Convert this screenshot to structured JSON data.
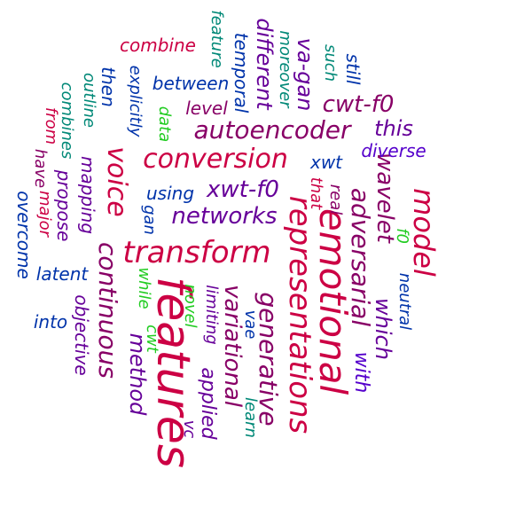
{
  "words": [
    {
      "text": "features",
      "color": "#cc0044"
    },
    {
      "text": "emotional",
      "color": "#cc0044"
    },
    {
      "text": "representations",
      "color": "#cc0044"
    },
    {
      "text": "transform",
      "color": "#cc0044"
    },
    {
      "text": "conversion",
      "color": "#cc0044"
    },
    {
      "text": "model",
      "color": "#cc0044"
    },
    {
      "text": "continuous",
      "color": "#880066"
    },
    {
      "text": "voice",
      "color": "#cc0044"
    },
    {
      "text": "adversarial",
      "color": "#880066"
    },
    {
      "text": "generative",
      "color": "#880066"
    },
    {
      "text": "variational",
      "color": "#880066"
    },
    {
      "text": "autoencoder",
      "color": "#880066"
    },
    {
      "text": "networks",
      "color": "#660099"
    },
    {
      "text": "wavelet",
      "color": "#880066"
    },
    {
      "text": "xwt-f0",
      "color": "#660099"
    },
    {
      "text": "cwt-f0",
      "color": "#880066"
    },
    {
      "text": "which",
      "color": "#660099"
    },
    {
      "text": "different",
      "color": "#660099"
    },
    {
      "text": "method",
      "color": "#660099"
    },
    {
      "text": "applied",
      "color": "#660099"
    },
    {
      "text": "va-gan",
      "color": "#660099"
    },
    {
      "text": "this",
      "color": "#660099"
    },
    {
      "text": "with",
      "color": "#5500cc"
    },
    {
      "text": "diverse",
      "color": "#5500cc"
    },
    {
      "text": "combine",
      "color": "#cc0044"
    },
    {
      "text": "between",
      "color": "#0033aa"
    },
    {
      "text": "level",
      "color": "#880066"
    },
    {
      "text": "using",
      "color": "#0033aa"
    },
    {
      "text": "temporal",
      "color": "#0033aa"
    },
    {
      "text": "moreover",
      "color": "#008877"
    },
    {
      "text": "such",
      "color": "#008877"
    },
    {
      "text": "still",
      "color": "#0033aa"
    },
    {
      "text": "feature",
      "color": "#008877"
    },
    {
      "text": "xwt",
      "color": "#0033aa"
    },
    {
      "text": "that",
      "color": "#cc0044"
    },
    {
      "text": "real",
      "color": "#880066"
    },
    {
      "text": "neutral",
      "color": "#0033aa"
    },
    {
      "text": "f0",
      "color": "#22cc22"
    },
    {
      "text": "mapping",
      "color": "#660099"
    },
    {
      "text": "propose",
      "color": "#660099"
    },
    {
      "text": "combines",
      "color": "#008877"
    },
    {
      "text": "outline",
      "color": "#008877"
    },
    {
      "text": "then",
      "color": "#0033aa"
    },
    {
      "text": "explicitly",
      "color": "#0033aa"
    },
    {
      "text": "data",
      "color": "#22cc22"
    },
    {
      "text": "gan",
      "color": "#0033aa"
    },
    {
      "text": "from",
      "color": "#cc0044"
    },
    {
      "text": "have",
      "color": "#880066"
    },
    {
      "text": "major",
      "color": "#cc0044"
    },
    {
      "text": "overcome",
      "color": "#0033aa"
    },
    {
      "text": "latent",
      "color": "#0033aa"
    },
    {
      "text": "into",
      "color": "#0033aa"
    },
    {
      "text": "objective",
      "color": "#660099"
    },
    {
      "text": "while",
      "color": "#22cc22"
    },
    {
      "text": "cwt",
      "color": "#22cc22"
    },
    {
      "text": "novel",
      "color": "#22cc22"
    },
    {
      "text": "limiting",
      "color": "#660099"
    },
    {
      "text": "vae",
      "color": "#0033aa"
    },
    {
      "text": "vc",
      "color": "#660099"
    },
    {
      "text": "learn",
      "color": "#008877"
    }
  ]
}
